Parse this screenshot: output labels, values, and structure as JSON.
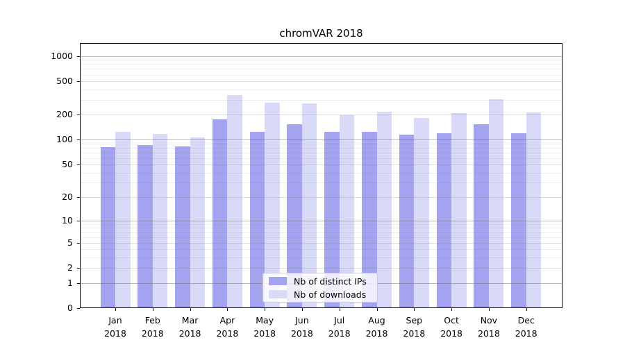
{
  "title": "chromVAR 2018",
  "chart_data": {
    "type": "bar",
    "title": "chromVAR 2018",
    "categories": [
      "Jan 2018",
      "Feb 2018",
      "Mar 2018",
      "Apr 2018",
      "May 2018",
      "Jun 2018",
      "Jul 2018",
      "Aug 2018",
      "Sep 2018",
      "Oct 2018",
      "Nov 2018",
      "Dec 2018"
    ],
    "months": [
      "Jan",
      "Feb",
      "Mar",
      "Apr",
      "May",
      "Jun",
      "Jul",
      "Aug",
      "Sep",
      "Oct",
      "Nov",
      "Dec"
    ],
    "year": "2018",
    "series": [
      {
        "name": "Nb of distinct IPs",
        "color": "#a3a3f0",
        "values": [
          81,
          87,
          83,
          175,
          125,
          152,
          123,
          123,
          114,
          119,
          153,
          119
        ]
      },
      {
        "name": "Nb of downloads",
        "color": "#d9d9f8",
        "values": [
          124,
          118,
          106,
          340,
          276,
          272,
          197,
          218,
          182,
          210,
          303,
          213
        ]
      }
    ],
    "xlabel": "",
    "ylabel": "",
    "yscale": "log1p",
    "ylim": [
      0,
      1300
    ],
    "ytick_values": [
      1000,
      500,
      200,
      100,
      50,
      20,
      10,
      5,
      2,
      1,
      0
    ],
    "ytick_labels": [
      "1000",
      "500",
      "200",
      "100",
      "50",
      "20",
      "10",
      "5",
      "2",
      "1",
      "0"
    ],
    "major_grid_values": [
      1000,
      100,
      10,
      1
    ],
    "mid_grid_values": [
      500,
      200,
      50,
      20,
      5,
      2
    ],
    "minor_grid_values": [
      900,
      800,
      700,
      600,
      400,
      300,
      90,
      80,
      70,
      60,
      40,
      30,
      9,
      8,
      7,
      6,
      4,
      3
    ],
    "grid": true,
    "legend_position": "lower center"
  },
  "legend": {
    "items": [
      {
        "label": "Nb of distinct IPs"
      },
      {
        "label": "Nb of downloads"
      }
    ]
  },
  "colors": {
    "distinct_ips_bar": "#a3a3f0",
    "downloads_bar": "#d9d9f8",
    "major_grid": "rgba(100,100,100,0.45)",
    "mid_grid": "rgba(120,120,120,0.25)",
    "minor_grid": "rgba(130,130,130,0.15)",
    "axis": "#000000",
    "background": "#ffffff"
  }
}
